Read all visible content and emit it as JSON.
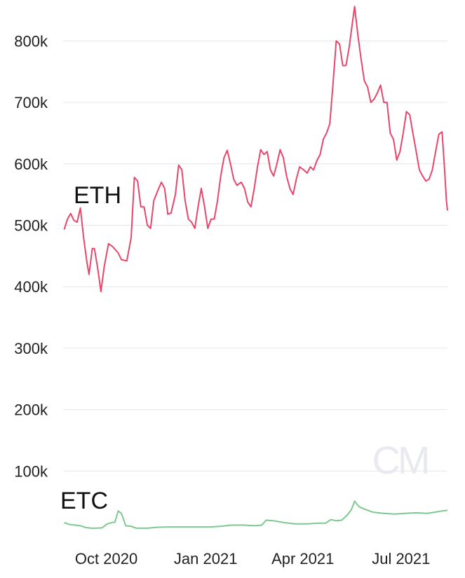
{
  "chart_data": {
    "type": "line",
    "title": "",
    "xlabel": "",
    "ylabel": "",
    "ylim": [
      0,
      860000
    ],
    "yticks": [
      {
        "value": 100000,
        "label": "100k"
      },
      {
        "value": 200000,
        "label": "200k"
      },
      {
        "value": 300000,
        "label": "300k"
      },
      {
        "value": 400000,
        "label": "400k"
      },
      {
        "value": 500000,
        "label": "500k"
      },
      {
        "value": 600000,
        "label": "600k"
      },
      {
        "value": 700000,
        "label": "700k"
      },
      {
        "value": 800000,
        "label": "800k"
      }
    ],
    "xlim": [
      "2020-08-22",
      "2021-08-13"
    ],
    "xticks": [
      {
        "value": "2020-10-01",
        "label": "Oct 2020"
      },
      {
        "value": "2021-01-01",
        "label": "Jan 2021"
      },
      {
        "value": "2021-04-01",
        "label": "Apr 2021"
      },
      {
        "value": "2021-07-01",
        "label": "Jul 2021"
      }
    ],
    "grid": true,
    "watermark": "CM",
    "series": [
      {
        "name": "ETH",
        "color": "#e8466b",
        "points": [
          [
            "2020-08-23",
            493000
          ],
          [
            "2020-08-26",
            510000
          ],
          [
            "2020-08-29",
            519000
          ],
          [
            "2020-09-01",
            508000
          ],
          [
            "2020-09-04",
            505000
          ],
          [
            "2020-09-07",
            528000
          ],
          [
            "2020-09-10",
            480000
          ],
          [
            "2020-09-13",
            440000
          ],
          [
            "2020-09-15",
            420000
          ],
          [
            "2020-09-18",
            462000
          ],
          [
            "2020-09-20",
            462000
          ],
          [
            "2020-09-23",
            430000
          ],
          [
            "2020-09-26",
            392000
          ],
          [
            "2020-09-29",
            432000
          ],
          [
            "2020-10-03",
            470000
          ],
          [
            "2020-10-07",
            465000
          ],
          [
            "2020-10-12",
            455000
          ],
          [
            "2020-10-15",
            444000
          ],
          [
            "2020-10-20",
            442000
          ],
          [
            "2020-10-24",
            480000
          ],
          [
            "2020-10-27",
            578000
          ],
          [
            "2020-10-30",
            572000
          ],
          [
            "2020-11-02",
            530000
          ],
          [
            "2020-11-05",
            530000
          ],
          [
            "2020-11-08",
            500000
          ],
          [
            "2020-11-11",
            495000
          ],
          [
            "2020-11-14",
            540000
          ],
          [
            "2020-11-18",
            558000
          ],
          [
            "2020-11-21",
            570000
          ],
          [
            "2020-11-24",
            560000
          ],
          [
            "2020-11-27",
            518000
          ],
          [
            "2020-11-30",
            520000
          ],
          [
            "2020-12-04",
            550000
          ],
          [
            "2020-12-07",
            598000
          ],
          [
            "2020-12-10",
            590000
          ],
          [
            "2020-12-13",
            540000
          ],
          [
            "2020-12-16",
            510000
          ],
          [
            "2020-12-19",
            505000
          ],
          [
            "2020-12-22",
            495000
          ],
          [
            "2020-12-25",
            530000
          ],
          [
            "2020-12-28",
            560000
          ],
          [
            "2020-12-31",
            530000
          ],
          [
            "2021-01-03",
            495000
          ],
          [
            "2021-01-06",
            510000
          ],
          [
            "2021-01-09",
            510000
          ],
          [
            "2021-01-12",
            540000
          ],
          [
            "2021-01-15",
            580000
          ],
          [
            "2021-01-18",
            610000
          ],
          [
            "2021-01-21",
            622000
          ],
          [
            "2021-01-24",
            600000
          ],
          [
            "2021-01-27",
            575000
          ],
          [
            "2021-01-30",
            565000
          ],
          [
            "2021-02-03",
            570000
          ],
          [
            "2021-02-06",
            560000
          ],
          [
            "2021-02-09",
            538000
          ],
          [
            "2021-02-12",
            530000
          ],
          [
            "2021-02-15",
            560000
          ],
          [
            "2021-02-18",
            595000
          ],
          [
            "2021-02-21",
            623000
          ],
          [
            "2021-02-24",
            615000
          ],
          [
            "2021-02-27",
            620000
          ],
          [
            "2021-03-02",
            590000
          ],
          [
            "2021-03-05",
            580000
          ],
          [
            "2021-03-08",
            600000
          ],
          [
            "2021-03-11",
            623000
          ],
          [
            "2021-03-14",
            610000
          ],
          [
            "2021-03-17",
            580000
          ],
          [
            "2021-03-20",
            560000
          ],
          [
            "2021-03-23",
            550000
          ],
          [
            "2021-03-26",
            575000
          ],
          [
            "2021-03-29",
            595000
          ],
          [
            "2021-04-02",
            590000
          ],
          [
            "2021-04-05",
            585000
          ],
          [
            "2021-04-08",
            595000
          ],
          [
            "2021-04-11",
            590000
          ],
          [
            "2021-04-14",
            605000
          ],
          [
            "2021-04-17",
            615000
          ],
          [
            "2021-04-20",
            640000
          ],
          [
            "2021-04-23",
            650000
          ],
          [
            "2021-04-26",
            665000
          ],
          [
            "2021-04-29",
            730000
          ],
          [
            "2021-05-02",
            800000
          ],
          [
            "2021-05-05",
            795000
          ],
          [
            "2021-05-08",
            760000
          ],
          [
            "2021-05-11",
            760000
          ],
          [
            "2021-05-14",
            790000
          ],
          [
            "2021-05-17",
            830000
          ],
          [
            "2021-05-19",
            856000
          ],
          [
            "2021-05-22",
            810000
          ],
          [
            "2021-05-25",
            770000
          ],
          [
            "2021-05-28",
            735000
          ],
          [
            "2021-05-31",
            725000
          ],
          [
            "2021-06-03",
            700000
          ],
          [
            "2021-06-06",
            705000
          ],
          [
            "2021-06-09",
            715000
          ],
          [
            "2021-06-12",
            728000
          ],
          [
            "2021-06-15",
            700000
          ],
          [
            "2021-06-18",
            700000
          ],
          [
            "2021-06-21",
            650000
          ],
          [
            "2021-06-24",
            640000
          ],
          [
            "2021-06-27",
            606000
          ],
          [
            "2021-06-30",
            620000
          ],
          [
            "2021-07-03",
            650000
          ],
          [
            "2021-07-06",
            685000
          ],
          [
            "2021-07-09",
            680000
          ],
          [
            "2021-07-12",
            650000
          ],
          [
            "2021-07-15",
            620000
          ],
          [
            "2021-07-18",
            590000
          ],
          [
            "2021-07-21",
            580000
          ],
          [
            "2021-07-24",
            572000
          ],
          [
            "2021-07-27",
            575000
          ],
          [
            "2021-07-30",
            590000
          ],
          [
            "2021-08-02",
            620000
          ],
          [
            "2021-08-05",
            648000
          ],
          [
            "2021-08-08",
            652000
          ],
          [
            "2021-08-10",
            600000
          ],
          [
            "2021-08-12",
            540000
          ],
          [
            "2021-08-13",
            524000
          ]
        ]
      },
      {
        "name": "ETC",
        "color": "#7dc98f",
        "points": [
          [
            "2020-08-23",
            16000
          ],
          [
            "2020-08-28",
            13000
          ],
          [
            "2020-09-02",
            12000
          ],
          [
            "2020-09-07",
            11000
          ],
          [
            "2020-09-12",
            8000
          ],
          [
            "2020-09-17",
            7000
          ],
          [
            "2020-09-22",
            7000
          ],
          [
            "2020-09-27",
            7500
          ],
          [
            "2020-10-02",
            14000
          ],
          [
            "2020-10-06",
            16000
          ],
          [
            "2020-10-09",
            17000
          ],
          [
            "2020-10-12",
            35000
          ],
          [
            "2020-10-15",
            31000
          ],
          [
            "2020-10-19",
            11000
          ],
          [
            "2020-10-24",
            10000
          ],
          [
            "2020-10-29",
            7000
          ],
          [
            "2020-11-08",
            7000
          ],
          [
            "2020-11-18",
            8500
          ],
          [
            "2020-11-28",
            9000
          ],
          [
            "2020-12-10",
            9000
          ],
          [
            "2020-12-25",
            9000
          ],
          [
            "2021-01-05",
            9000
          ],
          [
            "2021-01-15",
            10000
          ],
          [
            "2021-01-25",
            12000
          ],
          [
            "2021-02-05",
            12000
          ],
          [
            "2021-02-15",
            11000
          ],
          [
            "2021-02-22",
            12000
          ],
          [
            "2021-02-26",
            20000
          ],
          [
            "2021-03-05",
            19000
          ],
          [
            "2021-03-15",
            16000
          ],
          [
            "2021-03-25",
            14000
          ],
          [
            "2021-04-05",
            14000
          ],
          [
            "2021-04-15",
            15000
          ],
          [
            "2021-04-22",
            15000
          ],
          [
            "2021-04-27",
            21000
          ],
          [
            "2021-05-02",
            19000
          ],
          [
            "2021-05-07",
            20000
          ],
          [
            "2021-05-12",
            28000
          ],
          [
            "2021-05-16",
            37000
          ],
          [
            "2021-05-19",
            51000
          ],
          [
            "2021-05-23",
            42000
          ],
          [
            "2021-05-28",
            38000
          ],
          [
            "2021-06-05",
            33000
          ],
          [
            "2021-06-15",
            31000
          ],
          [
            "2021-06-25",
            30000
          ],
          [
            "2021-07-05",
            31000
          ],
          [
            "2021-07-15",
            32000
          ],
          [
            "2021-07-25",
            31000
          ],
          [
            "2021-08-01",
            33000
          ],
          [
            "2021-08-08",
            35000
          ],
          [
            "2021-08-13",
            36000
          ]
        ]
      }
    ]
  }
}
